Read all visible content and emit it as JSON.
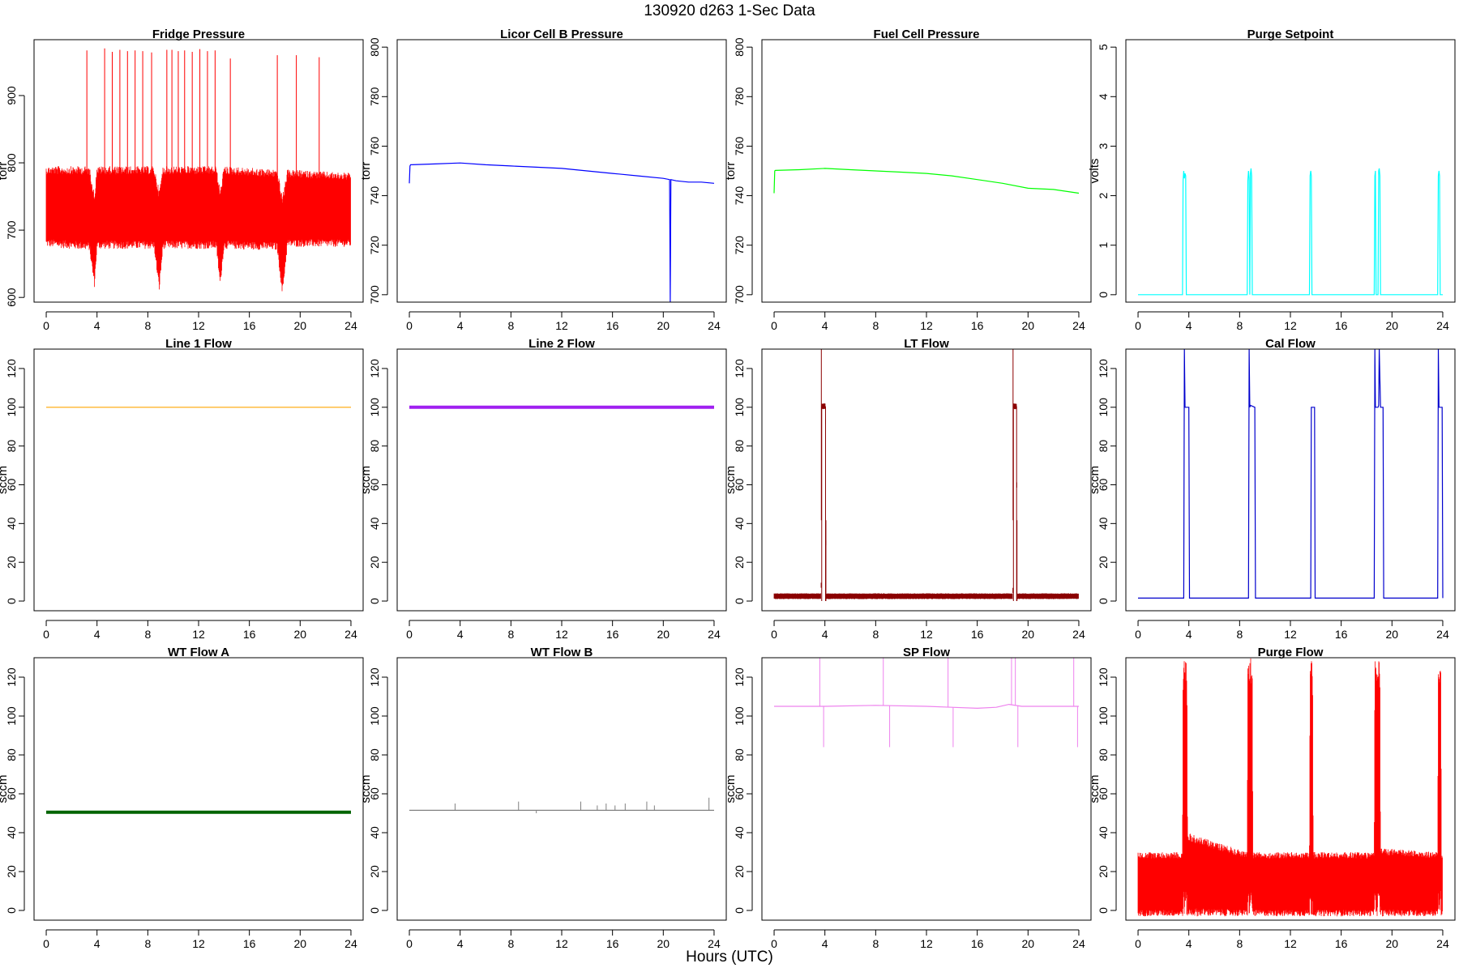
{
  "figure": {
    "title": "130920    d263    1-Sec Data",
    "xlabel": "Hours (UTC)"
  },
  "chart_data": [
    {
      "type": "line",
      "title": "Fridge Pressure",
      "xlabel": "",
      "ylabel": "torr",
      "color": "#ff0000",
      "xlim": [
        0,
        24
      ],
      "ylim": [
        593,
        983
      ],
      "xticks": [
        0,
        4,
        8,
        12,
        16,
        20,
        24
      ],
      "yticks": [
        600,
        700,
        800,
        900
      ],
      "render": "band",
      "x": [
        0,
        3.4,
        3.8,
        4.0,
        8.5,
        8.9,
        9.2,
        13.4,
        13.7,
        14.0,
        18.2,
        18.6,
        19.0,
        24
      ],
      "band_low": [
        675,
        670,
        615,
        672,
        672,
        608,
        672,
        672,
        615,
        672,
        670,
        602,
        675,
        675
      ],
      "band_high": [
        795,
        795,
        755,
        795,
        795,
        760,
        795,
        795,
        760,
        795,
        790,
        750,
        790,
        785
      ],
      "spikes": [
        {
          "x": 3.2,
          "y": 967
        },
        {
          "x": 4.6,
          "y": 970
        },
        {
          "x": 5.2,
          "y": 965
        },
        {
          "x": 5.8,
          "y": 968
        },
        {
          "x": 6.4,
          "y": 966
        },
        {
          "x": 7.0,
          "y": 967
        },
        {
          "x": 7.6,
          "y": 966
        },
        {
          "x": 8.3,
          "y": 964
        },
        {
          "x": 9.5,
          "y": 968
        },
        {
          "x": 9.9,
          "y": 968
        },
        {
          "x": 10.4,
          "y": 966
        },
        {
          "x": 10.9,
          "y": 967
        },
        {
          "x": 11.5,
          "y": 965
        },
        {
          "x": 12.1,
          "y": 969
        },
        {
          "x": 12.7,
          "y": 966
        },
        {
          "x": 13.3,
          "y": 967
        },
        {
          "x": 14.5,
          "y": 955
        },
        {
          "x": 18.2,
          "y": 960
        },
        {
          "x": 19.7,
          "y": 960
        },
        {
          "x": 21.5,
          "y": 957
        }
      ]
    },
    {
      "type": "line",
      "title": "Licor Cell B Pressure",
      "xlabel": "",
      "ylabel": "torr",
      "color": "#0000ff",
      "xlim": [
        0,
        24
      ],
      "ylim": [
        697,
        803
      ],
      "xticks": [
        0,
        4,
        8,
        12,
        16,
        20,
        24
      ],
      "yticks": [
        700,
        720,
        740,
        760,
        780,
        800
      ],
      "render": "line",
      "x": [
        0,
        0.05,
        0.1,
        2,
        4,
        6,
        8,
        10,
        12,
        14,
        16,
        18,
        20,
        20.5,
        20.55,
        20.6,
        21,
        22,
        23,
        24
      ],
      "y": [
        745,
        752,
        752.5,
        752.8,
        753.2,
        752.5,
        752,
        751.5,
        751,
        750,
        749,
        748,
        747,
        746.5,
        697,
        746.5,
        746,
        745.5,
        745.5,
        745
      ]
    },
    {
      "type": "line",
      "title": "Fuel Cell Pressure",
      "xlabel": "",
      "ylabel": "torr",
      "color": "#00ff00",
      "xlim": [
        0,
        24
      ],
      "ylim": [
        697,
        803
      ],
      "xticks": [
        0,
        4,
        8,
        12,
        16,
        20,
        24
      ],
      "yticks": [
        700,
        720,
        740,
        760,
        780,
        800
      ],
      "render": "line",
      "x": [
        0,
        0.05,
        0.1,
        2,
        4,
        6,
        8,
        10,
        12,
        14,
        16,
        18,
        20,
        22,
        24
      ],
      "y": [
        741,
        750,
        750.2,
        750.5,
        751,
        750.5,
        750,
        749.5,
        749,
        748,
        746.5,
        745,
        743,
        742.5,
        741
      ]
    },
    {
      "type": "line",
      "title": "Purge Setpoint",
      "xlabel": "",
      "ylabel": "volts",
      "color": "#00ffff",
      "xlim": [
        0,
        24
      ],
      "ylim": [
        -0.15,
        5.15
      ],
      "xticks": [
        0,
        4,
        8,
        12,
        16,
        20,
        24
      ],
      "yticks": [
        0,
        1,
        2,
        3,
        4,
        5
      ],
      "render": "line",
      "x": [
        0,
        3.5,
        3.55,
        3.6,
        3.65,
        3.7,
        3.75,
        3.8,
        3.85,
        8.6,
        8.65,
        8.7,
        8.75,
        8.8,
        8.85,
        8.9,
        8.95,
        9.0,
        9.05,
        13.5,
        13.55,
        13.6,
        13.65,
        13.7,
        13.75,
        18.6,
        18.65,
        18.7,
        18.75,
        18.9,
        18.95,
        19.0,
        19.05,
        19.1,
        23.6,
        23.65,
        23.7,
        23.75,
        23.8,
        23.85,
        24
      ],
      "y": [
        0,
        0,
        2.3,
        2.5,
        2.35,
        2.45,
        2.4,
        0,
        0,
        0,
        2.3,
        2.5,
        2.35,
        0,
        2.45,
        2.55,
        2.4,
        0,
        0,
        0,
        2.4,
        2.5,
        2.4,
        0,
        0,
        0,
        2.4,
        2.5,
        0,
        0,
        2.5,
        2.55,
        2.4,
        0,
        0,
        2.4,
        2.5,
        2.4,
        0,
        0,
        0
      ]
    },
    {
      "type": "line",
      "title": "Line 1 Flow",
      "xlabel": "",
      "ylabel": "sccm",
      "color": "#ffa500",
      "xlim": [
        0,
        24
      ],
      "ylim": [
        -5,
        130
      ],
      "xticks": [
        0,
        4,
        8,
        12,
        16,
        20,
        24
      ],
      "yticks": [
        0,
        20,
        40,
        60,
        80,
        100,
        120
      ],
      "render": "line",
      "x": [
        0,
        24
      ],
      "y": [
        100,
        100
      ]
    },
    {
      "type": "line",
      "title": "Line 2 Flow",
      "xlabel": "",
      "ylabel": "sccm",
      "color": "#a020f0",
      "xlim": [
        0,
        24
      ],
      "ylim": [
        -5,
        130
      ],
      "xticks": [
        0,
        4,
        8,
        12,
        16,
        20,
        24
      ],
      "yticks": [
        0,
        20,
        40,
        60,
        80,
        100,
        120
      ],
      "render": "line",
      "thick": true,
      "x": [
        0,
        24
      ],
      "y": [
        100,
        100
      ]
    },
    {
      "type": "line",
      "title": "LT Flow",
      "xlabel": "",
      "ylabel": "sccm",
      "color": "#8b0000",
      "xlim": [
        0,
        24
      ],
      "ylim": [
        -5,
        130
      ],
      "xticks": [
        0,
        4,
        8,
        12,
        16,
        20,
        24
      ],
      "yticks": [
        0,
        20,
        40,
        60,
        80,
        100,
        120
      ],
      "render": "band",
      "x": [
        0,
        3.7,
        3.75,
        4.05,
        4.1,
        18.8,
        18.85,
        19.1,
        19.15,
        24
      ],
      "band_low": [
        1,
        1,
        99,
        99,
        1,
        1,
        99,
        99,
        1,
        1
      ],
      "band_high": [
        4,
        4,
        102,
        102,
        4,
        4,
        102,
        102,
        4,
        4
      ],
      "spikes": [
        {
          "x": 3.72,
          "y": 130
        },
        {
          "x": 3.75,
          "y": 0
        },
        {
          "x": 4.05,
          "y": 0
        },
        {
          "x": 4.08,
          "y": 0
        },
        {
          "x": 18.82,
          "y": 130
        },
        {
          "x": 18.85,
          "y": 0
        },
        {
          "x": 19.1,
          "y": 0
        },
        {
          "x": 19.13,
          "y": 0
        }
      ]
    },
    {
      "type": "line",
      "title": "Cal Flow",
      "xlabel": "",
      "ylabel": "sccm",
      "color": "#0000cd",
      "xlim": [
        0,
        24
      ],
      "ylim": [
        -5,
        130
      ],
      "xticks": [
        0,
        4,
        8,
        12,
        16,
        20,
        24
      ],
      "yticks": [
        0,
        20,
        40,
        60,
        80,
        100,
        120
      ],
      "render": "line",
      "x": [
        0,
        3.6,
        3.65,
        3.7,
        3.75,
        4.0,
        4.05,
        8.7,
        8.75,
        8.8,
        8.85,
        9.2,
        9.25,
        13.6,
        13.65,
        13.9,
        13.95,
        18.6,
        18.65,
        18.7,
        18.9,
        18.95,
        19.0,
        19.1,
        19.15,
        19.3,
        19.35,
        23.6,
        23.65,
        23.7,
        23.95,
        24
      ],
      "y": [
        1.5,
        1.5,
        130,
        100,
        100,
        100,
        1.5,
        1.5,
        130,
        100,
        101,
        100,
        1.5,
        1.5,
        100,
        100,
        1.5,
        1.5,
        130,
        100,
        100,
        101,
        130,
        100,
        100,
        100,
        1.5,
        1.5,
        130,
        100,
        100,
        1.5
      ]
    },
    {
      "type": "line",
      "title": "WT Flow A",
      "xlabel": "",
      "ylabel": "sccm",
      "color": "#006400",
      "xlim": [
        0,
        24
      ],
      "ylim": [
        -5,
        130
      ],
      "xticks": [
        0,
        4,
        8,
        12,
        16,
        20,
        24
      ],
      "yticks": [
        0,
        20,
        40,
        60,
        80,
        100,
        120
      ],
      "render": "line",
      "thick": true,
      "x": [
        0,
        24
      ],
      "y": [
        50.5,
        50.5
      ]
    },
    {
      "type": "line",
      "title": "WT Flow B",
      "xlabel": "",
      "ylabel": "sccm",
      "color": "#808080",
      "xlim": [
        0,
        24
      ],
      "ylim": [
        -5,
        130
      ],
      "xticks": [
        0,
        4,
        8,
        12,
        16,
        20,
        24
      ],
      "yticks": [
        0,
        20,
        40,
        60,
        80,
        100,
        120
      ],
      "render": "line",
      "x": [
        0,
        24
      ],
      "y": [
        51.5,
        51.5
      ],
      "spikes": [
        {
          "x": 3.6,
          "y": 55
        },
        {
          "x": 8.6,
          "y": 56
        },
        {
          "x": 10,
          "y": 50
        },
        {
          "x": 13.5,
          "y": 56
        },
        {
          "x": 14.8,
          "y": 54
        },
        {
          "x": 15.5,
          "y": 55
        },
        {
          "x": 16.2,
          "y": 54
        },
        {
          "x": 17,
          "y": 55
        },
        {
          "x": 18.7,
          "y": 56
        },
        {
          "x": 19.3,
          "y": 54
        },
        {
          "x": 23.6,
          "y": 58
        }
      ]
    },
    {
      "type": "line",
      "title": "SP Flow",
      "xlabel": "",
      "ylabel": "sccm",
      "color": "#ee82ee",
      "xlim": [
        0,
        24
      ],
      "ylim": [
        -5,
        130
      ],
      "xticks": [
        0,
        4,
        8,
        12,
        16,
        20,
        24
      ],
      "yticks": [
        0,
        20,
        40,
        60,
        80,
        100,
        120
      ],
      "render": "line",
      "x": [
        0,
        4,
        8,
        12,
        14,
        16,
        17.5,
        18.5,
        19.5,
        21,
        24
      ],
      "y": [
        105,
        105,
        105.5,
        105,
        104.5,
        104,
        104.5,
        106,
        105,
        105,
        105
      ],
      "spikes": [
        {
          "x": 3.6,
          "y": 130
        },
        {
          "x": 3.9,
          "y": 84
        },
        {
          "x": 8.6,
          "y": 130
        },
        {
          "x": 9.1,
          "y": 84
        },
        {
          "x": 13.7,
          "y": 130
        },
        {
          "x": 14.1,
          "y": 84
        },
        {
          "x": 18.7,
          "y": 130
        },
        {
          "x": 19.0,
          "y": 130
        },
        {
          "x": 19.2,
          "y": 84
        },
        {
          "x": 23.6,
          "y": 130
        },
        {
          "x": 23.9,
          "y": 84
        }
      ]
    },
    {
      "type": "line",
      "title": "Purge Flow",
      "xlabel": "",
      "ylabel": "sccm",
      "color": "#ff0000",
      "xlim": [
        0,
        24
      ],
      "ylim": [
        -5,
        130
      ],
      "xticks": [
        0,
        4,
        8,
        12,
        16,
        20,
        24
      ],
      "yticks": [
        0,
        20,
        40,
        60,
        80,
        100,
        120
      ],
      "render": "band",
      "x": [
        0,
        3.5,
        3.55,
        3.85,
        3.9,
        8.6,
        8.65,
        9.0,
        9.05,
        13.5,
        13.55,
        13.75,
        13.8,
        18.6,
        18.65,
        19.05,
        19.1,
        23.6,
        23.65,
        23.85,
        23.9,
        24
      ],
      "band_low": [
        -3,
        -3,
        -3,
        -3,
        -3,
        -3,
        -3,
        -3,
        -3,
        -3,
        -3,
        -3,
        -3,
        -3,
        -3,
        -3,
        -3,
        -3,
        -3,
        -3,
        -3,
        -3
      ],
      "band_high": [
        30,
        30,
        130,
        130,
        40,
        30,
        130,
        130,
        30,
        30,
        130,
        130,
        30,
        30,
        130,
        130,
        32,
        30,
        130,
        130,
        30,
        30
      ]
    }
  ]
}
